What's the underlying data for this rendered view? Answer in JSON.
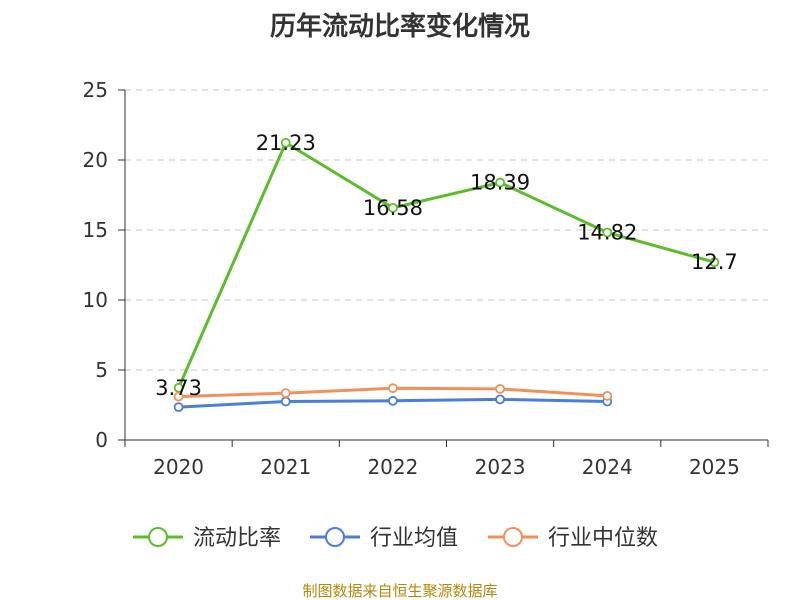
{
  "chart_data": {
    "type": "line",
    "title": "历年流动比率变化情况",
    "categories": [
      "2020",
      "2021",
      "2022",
      "2023",
      "2024",
      "2025"
    ],
    "ylim": [
      0,
      25
    ],
    "yticks": [
      0,
      5,
      10,
      15,
      20,
      25
    ],
    "grid": true,
    "legend_position": "bottom",
    "series": [
      {
        "name": "流动比率",
        "color": "#5cbd2a",
        "values": [
          3.73,
          21.23,
          16.58,
          18.39,
          14.82,
          12.7
        ],
        "labels": [
          "3.73",
          "21.23",
          "16.58",
          "18.39",
          "14.82",
          "12.7"
        ]
      },
      {
        "name": "行业均值",
        "color": "#4a7ed8",
        "values": [
          2.35,
          2.75,
          2.8,
          2.9,
          2.75,
          null
        ]
      },
      {
        "name": "行业中位数",
        "color": "#f3905a",
        "values": [
          3.1,
          3.35,
          3.7,
          3.65,
          3.15,
          null
        ]
      }
    ],
    "source": "制图数据来自恒生聚源数据库"
  }
}
